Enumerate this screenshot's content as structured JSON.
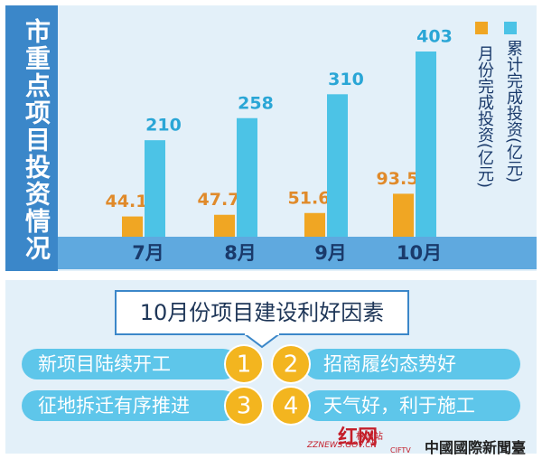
{
  "chart_data": {
    "type": "bar",
    "title": "市重点项目投资情况",
    "categories": [
      "7月",
      "8月",
      "9月",
      "10月"
    ],
    "series": [
      {
        "name": "月份完成投资(亿元)",
        "color": "#f0a623",
        "label_color": "#e08a2a",
        "values": [
          44.1,
          47.7,
          51.6,
          93.5
        ]
      },
      {
        "name": "累计完成投资(亿元)",
        "color": "#4cc3e6",
        "label_color": "#2aa6d6",
        "values": [
          210,
          258,
          310,
          403
        ]
      }
    ]
  },
  "factors": {
    "title": "10月份项目建设利好因素",
    "items": [
      {
        "number": 1,
        "text": "新项目陆续开工"
      },
      {
        "number": 2,
        "text": "招商履约态势好"
      },
      {
        "number": 3,
        "text": "征地拆迁有序推进"
      },
      {
        "number": 4,
        "text": "天气好，利于施工"
      }
    ]
  },
  "watermarks": [
    "红网",
    "株洲站",
    "ZZNEWS.GOV.CN",
    "CIFTV",
    "中國國際新聞臺"
  ]
}
